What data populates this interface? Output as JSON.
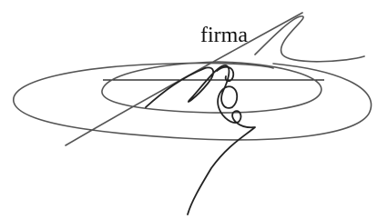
{
  "label": "firma"
}
